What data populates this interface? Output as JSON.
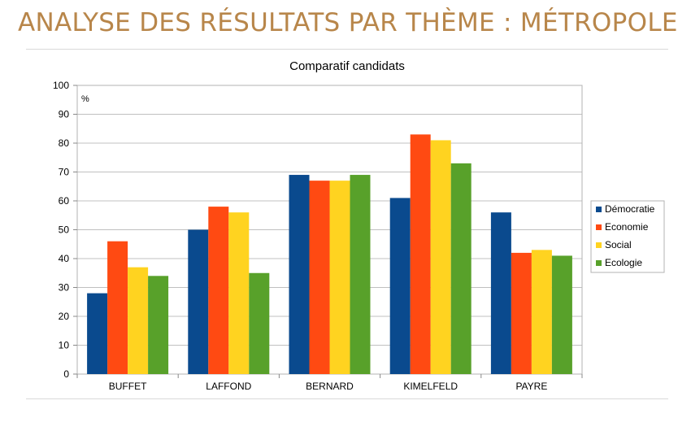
{
  "slide": {
    "title": "ANALYSE DES RÉSULTATS PAR THÈME : MÉTROPOLE"
  },
  "colors": {
    "title": "#b8864a",
    "grid": "#c0c0c0",
    "series": [
      "#0a4a8e",
      "#ff4a12",
      "#ffd320",
      "#58a12a"
    ]
  },
  "chart_data": {
    "type": "bar",
    "title": "Comparatif candidats",
    "ylabel": "%",
    "xlabel": "",
    "ylim": [
      0,
      100
    ],
    "yticks": [
      0,
      10,
      20,
      30,
      40,
      50,
      60,
      70,
      80,
      90,
      100
    ],
    "grid": true,
    "legend_position": "right",
    "categories": [
      "BUFFET",
      "LAFFOND",
      "BERNARD",
      "KIMELFELD",
      "PAYRE"
    ],
    "series": [
      {
        "name": "Démocratie",
        "values": [
          28,
          50,
          69,
          61,
          56
        ]
      },
      {
        "name": "Economie",
        "values": [
          46,
          58,
          67,
          83,
          42
        ]
      },
      {
        "name": "Social",
        "values": [
          37,
          56,
          67,
          81,
          43
        ]
      },
      {
        "name": "Ecologie",
        "values": [
          34,
          35,
          69,
          73,
          41
        ]
      }
    ]
  }
}
